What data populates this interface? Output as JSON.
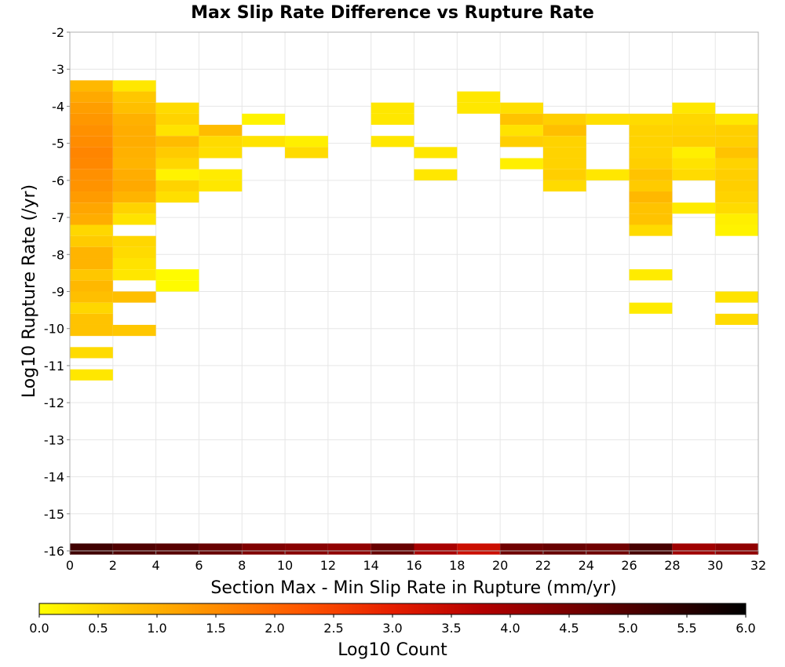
{
  "chart_data": {
    "type": "heatmap",
    "title": "Max Slip Rate Difference vs Rupture Rate",
    "xlabel": "Section Max - Min Slip Rate in Rupture (mm/yr)",
    "ylabel": "Log10 Rupture Rate (/yr)",
    "xlim": [
      0,
      32
    ],
    "ylim": [
      -16,
      -2
    ],
    "x_ticks": [
      "0",
      "2",
      "4",
      "6",
      "8",
      "10",
      "12",
      "14",
      "16",
      "18",
      "20",
      "22",
      "24",
      "26",
      "28",
      "30",
      "32"
    ],
    "y_ticks": [
      "-2",
      "-3",
      "-4",
      "-5",
      "-6",
      "-7",
      "-8",
      "-9",
      "-10",
      "-11",
      "-12",
      "-13",
      "-14",
      "-15",
      "-16"
    ],
    "x_bin_width": 2,
    "y_bin_height": 0.3,
    "grid": true,
    "colorscale": {
      "label": "Log10 Count",
      "range": [
        0,
        6
      ],
      "ticks": [
        "0.0",
        "0.5",
        "1.0",
        "1.5",
        "2.0",
        "2.5",
        "3.0",
        "3.5",
        "4.0",
        "4.5",
        "5.0",
        "5.5",
        "6.0"
      ],
      "colors": [
        "#ffff00",
        "#ffc300",
        "#ff8c00",
        "#ff5500",
        "#e61e00",
        "#b40000",
        "#780000",
        "#3c0000",
        "#000000"
      ]
    },
    "cells": [
      {
        "x": 0,
        "y": -3.45,
        "v": 0.9
      },
      {
        "x": 0,
        "y": -3.75,
        "v": 1.1
      },
      {
        "x": 0,
        "y": -4.05,
        "v": 1.25
      },
      {
        "x": 0,
        "y": -4.35,
        "v": 1.35
      },
      {
        "x": 0,
        "y": -4.65,
        "v": 1.45
      },
      {
        "x": 0,
        "y": -4.95,
        "v": 1.5
      },
      {
        "x": 0,
        "y": -5.25,
        "v": 1.6
      },
      {
        "x": 0,
        "y": -5.55,
        "v": 1.55
      },
      {
        "x": 0,
        "y": -5.85,
        "v": 1.45
      },
      {
        "x": 0,
        "y": -6.15,
        "v": 1.4
      },
      {
        "x": 0,
        "y": -6.45,
        "v": 1.3
      },
      {
        "x": 0,
        "y": -6.75,
        "v": 1.15
      },
      {
        "x": 0,
        "y": -7.05,
        "v": 1.05
      },
      {
        "x": 0,
        "y": -7.35,
        "v": 0.5
      },
      {
        "x": 0,
        "y": -7.65,
        "v": 0.65
      },
      {
        "x": 0,
        "y": -7.95,
        "v": 0.95
      },
      {
        "x": 0,
        "y": -8.25,
        "v": 0.95
      },
      {
        "x": 0,
        "y": -8.55,
        "v": 0.7
      },
      {
        "x": 0,
        "y": -8.85,
        "v": 0.9
      },
      {
        "x": 0,
        "y": -9.15,
        "v": 0.8
      },
      {
        "x": 0,
        "y": -9.45,
        "v": 0.5
      },
      {
        "x": 0,
        "y": -9.75,
        "v": 0.75
      },
      {
        "x": 0,
        "y": -10.05,
        "v": 0.75
      },
      {
        "x": 0,
        "y": -10.65,
        "v": 0.45
      },
      {
        "x": 0,
        "y": -11.25,
        "v": 0.3
      },
      {
        "x": 2,
        "y": -3.45,
        "v": 0.3
      },
      {
        "x": 2,
        "y": -3.75,
        "v": 0.7
      },
      {
        "x": 2,
        "y": -4.05,
        "v": 0.8
      },
      {
        "x": 2,
        "y": -4.35,
        "v": 1.0
      },
      {
        "x": 2,
        "y": -4.65,
        "v": 1.05
      },
      {
        "x": 2,
        "y": -4.95,
        "v": 1.05
      },
      {
        "x": 2,
        "y": -5.25,
        "v": 1.0
      },
      {
        "x": 2,
        "y": -5.55,
        "v": 0.95
      },
      {
        "x": 2,
        "y": -5.85,
        "v": 1.05
      },
      {
        "x": 2,
        "y": -6.15,
        "v": 1.1
      },
      {
        "x": 2,
        "y": -6.45,
        "v": 0.95
      },
      {
        "x": 2,
        "y": -6.75,
        "v": 0.55
      },
      {
        "x": 2,
        "y": -7.05,
        "v": 0.35
      },
      {
        "x": 2,
        "y": -7.65,
        "v": 0.5
      },
      {
        "x": 2,
        "y": -7.95,
        "v": 0.45
      },
      {
        "x": 2,
        "y": -8.25,
        "v": 0.35
      },
      {
        "x": 2,
        "y": -8.55,
        "v": 0.3
      },
      {
        "x": 2,
        "y": -9.15,
        "v": 0.8
      },
      {
        "x": 2,
        "y": -10.05,
        "v": 0.7
      },
      {
        "x": 4,
        "y": -4.05,
        "v": 0.45
      },
      {
        "x": 4,
        "y": -4.35,
        "v": 0.55
      },
      {
        "x": 4,
        "y": -4.65,
        "v": 0.35
      },
      {
        "x": 4,
        "y": -4.95,
        "v": 0.85
      },
      {
        "x": 4,
        "y": -5.25,
        "v": 0.65
      },
      {
        "x": 4,
        "y": -5.55,
        "v": 0.5
      },
      {
        "x": 4,
        "y": -5.85,
        "v": 0.15
      },
      {
        "x": 4,
        "y": -6.15,
        "v": 0.55
      },
      {
        "x": 4,
        "y": -6.45,
        "v": 0.4
      },
      {
        "x": 4,
        "y": -8.55,
        "v": 0.05
      },
      {
        "x": 4,
        "y": -8.85,
        "v": 0.05
      },
      {
        "x": 6,
        "y": -4.65,
        "v": 0.85
      },
      {
        "x": 6,
        "y": -4.95,
        "v": 0.45
      },
      {
        "x": 6,
        "y": -5.25,
        "v": 0.4
      },
      {
        "x": 6,
        "y": -5.85,
        "v": 0.25
      },
      {
        "x": 6,
        "y": -6.15,
        "v": 0.3
      },
      {
        "x": 8,
        "y": -4.35,
        "v": 0.15
      },
      {
        "x": 8,
        "y": -4.95,
        "v": 0.35
      },
      {
        "x": 10,
        "y": -4.95,
        "v": 0.2
      },
      {
        "x": 10,
        "y": -5.25,
        "v": 0.45
      },
      {
        "x": 14,
        "y": -4.05,
        "v": 0.3
      },
      {
        "x": 14,
        "y": -4.35,
        "v": 0.3
      },
      {
        "x": 14,
        "y": -4.95,
        "v": 0.3
      },
      {
        "x": 16,
        "y": -5.25,
        "v": 0.3
      },
      {
        "x": 16,
        "y": -5.85,
        "v": 0.3
      },
      {
        "x": 18,
        "y": -3.75,
        "v": 0.3
      },
      {
        "x": 18,
        "y": -4.05,
        "v": 0.3
      },
      {
        "x": 20,
        "y": -4.05,
        "v": 0.4
      },
      {
        "x": 20,
        "y": -4.35,
        "v": 0.75
      },
      {
        "x": 20,
        "y": -4.65,
        "v": 0.35
      },
      {
        "x": 20,
        "y": -4.95,
        "v": 0.6
      },
      {
        "x": 20,
        "y": -5.55,
        "v": 0.2
      },
      {
        "x": 22,
        "y": -4.35,
        "v": 0.6
      },
      {
        "x": 22,
        "y": -4.65,
        "v": 0.8
      },
      {
        "x": 22,
        "y": -4.95,
        "v": 0.55
      },
      {
        "x": 22,
        "y": -5.25,
        "v": 0.55
      },
      {
        "x": 22,
        "y": -5.55,
        "v": 0.55
      },
      {
        "x": 22,
        "y": -5.85,
        "v": 0.6
      },
      {
        "x": 22,
        "y": -6.15,
        "v": 0.45
      },
      {
        "x": 24,
        "y": -4.35,
        "v": 0.4
      },
      {
        "x": 24,
        "y": -5.85,
        "v": 0.3
      },
      {
        "x": 26,
        "y": -4.35,
        "v": 0.45
      },
      {
        "x": 26,
        "y": -4.65,
        "v": 0.55
      },
      {
        "x": 26,
        "y": -4.95,
        "v": 0.55
      },
      {
        "x": 26,
        "y": -5.25,
        "v": 0.55
      },
      {
        "x": 26,
        "y": -5.55,
        "v": 0.6
      },
      {
        "x": 26,
        "y": -5.85,
        "v": 0.75
      },
      {
        "x": 26,
        "y": -6.15,
        "v": 0.65
      },
      {
        "x": 26,
        "y": -6.45,
        "v": 0.9
      },
      {
        "x": 26,
        "y": -6.75,
        "v": 0.75
      },
      {
        "x": 26,
        "y": -7.05,
        "v": 0.75
      },
      {
        "x": 26,
        "y": -7.35,
        "v": 0.45
      },
      {
        "x": 26,
        "y": -8.55,
        "v": 0.25
      },
      {
        "x": 26,
        "y": -9.45,
        "v": 0.25
      },
      {
        "x": 28,
        "y": -4.05,
        "v": 0.3
      },
      {
        "x": 28,
        "y": -4.35,
        "v": 0.5
      },
      {
        "x": 28,
        "y": -4.65,
        "v": 0.55
      },
      {
        "x": 28,
        "y": -4.95,
        "v": 0.6
      },
      {
        "x": 28,
        "y": -5.25,
        "v": 0.2
      },
      {
        "x": 28,
        "y": -5.55,
        "v": 0.35
      },
      {
        "x": 28,
        "y": -5.85,
        "v": 0.45
      },
      {
        "x": 28,
        "y": -6.75,
        "v": 0.25
      },
      {
        "x": 30,
        "y": -4.35,
        "v": 0.3
      },
      {
        "x": 30,
        "y": -4.65,
        "v": 0.6
      },
      {
        "x": 30,
        "y": -4.95,
        "v": 0.6
      },
      {
        "x": 30,
        "y": -5.25,
        "v": 0.75
      },
      {
        "x": 30,
        "y": -5.55,
        "v": 0.55
      },
      {
        "x": 30,
        "y": -5.85,
        "v": 0.6
      },
      {
        "x": 30,
        "y": -6.15,
        "v": 0.6
      },
      {
        "x": 30,
        "y": -6.45,
        "v": 0.55
      },
      {
        "x": 30,
        "y": -6.75,
        "v": 0.45
      },
      {
        "x": 30,
        "y": -7.05,
        "v": 0.2
      },
      {
        "x": 30,
        "y": -7.35,
        "v": 0.15
      },
      {
        "x": 30,
        "y": -9.15,
        "v": 0.35
      },
      {
        "x": 30,
        "y": -9.75,
        "v": 0.45
      },
      {
        "x": 0,
        "y": -15.95,
        "v": 5.2
      },
      {
        "x": 2,
        "y": -15.95,
        "v": 5.0
      },
      {
        "x": 4,
        "y": -15.95,
        "v": 4.9
      },
      {
        "x": 6,
        "y": -15.95,
        "v": 4.7
      },
      {
        "x": 8,
        "y": -15.95,
        "v": 4.4
      },
      {
        "x": 10,
        "y": -15.95,
        "v": 4.3
      },
      {
        "x": 12,
        "y": -15.95,
        "v": 4.2
      },
      {
        "x": 14,
        "y": -15.95,
        "v": 4.7
      },
      {
        "x": 16,
        "y": -15.95,
        "v": 3.9
      },
      {
        "x": 18,
        "y": -15.95,
        "v": 3.4
      },
      {
        "x": 20,
        "y": -15.95,
        "v": 4.6
      },
      {
        "x": 22,
        "y": -15.95,
        "v": 4.7
      },
      {
        "x": 24,
        "y": -15.95,
        "v": 4.6
      },
      {
        "x": 26,
        "y": -15.95,
        "v": 5.1
      },
      {
        "x": 28,
        "y": -15.95,
        "v": 4.0
      },
      {
        "x": 30,
        "y": -15.95,
        "v": 4.2
      }
    ]
  }
}
